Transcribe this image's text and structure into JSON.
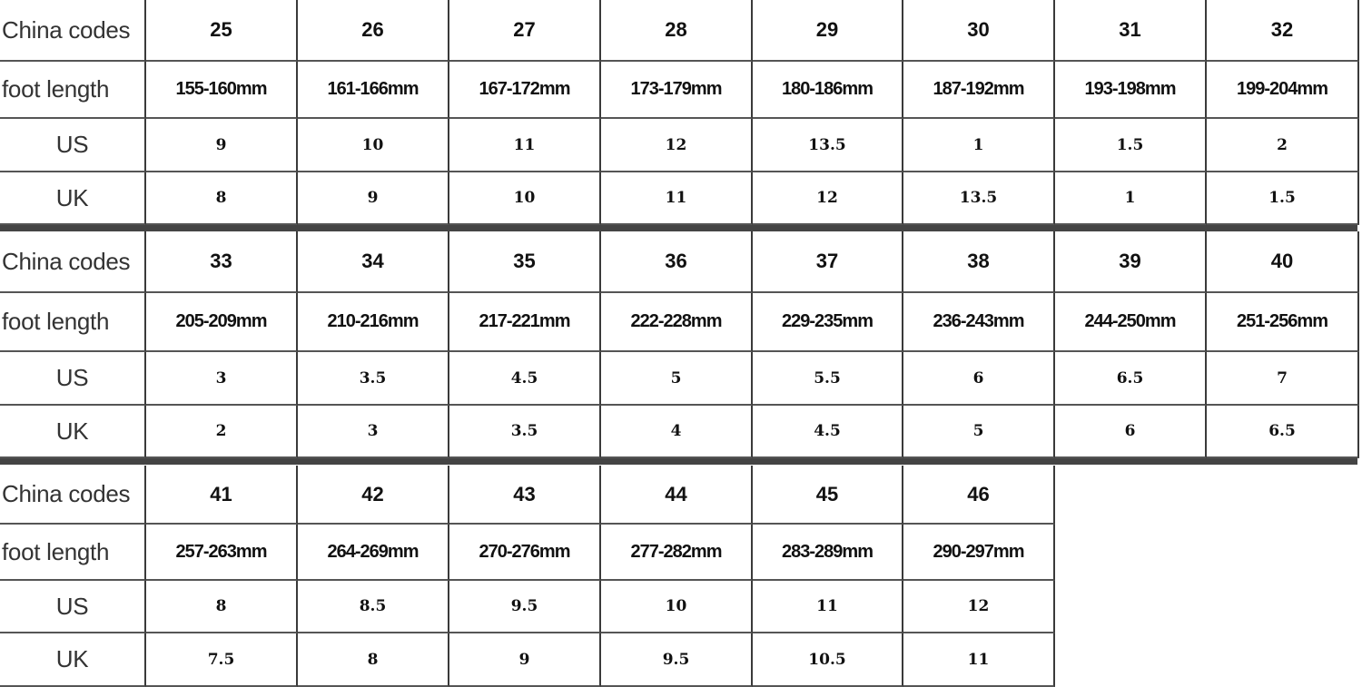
{
  "row_labels": [
    "China codes",
    "foot length",
    "US",
    "UK"
  ],
  "blocks": [
    {
      "china_codes": [
        "25",
        "26",
        "27",
        "28",
        "29",
        "30",
        "31",
        "32"
      ],
      "foot_length": [
        "155-160mm",
        "161-166mm",
        "167-172mm",
        "173-179mm",
        "180-186mm",
        "187-192mm",
        "193-198mm",
        "199-204mm"
      ],
      "us": [
        "9",
        "10",
        "11",
        "12",
        "13.5",
        "1",
        "1.5",
        "2"
      ],
      "uk": [
        "8",
        "9",
        "10",
        "11",
        "12",
        "13.5",
        "1",
        "1.5"
      ]
    },
    {
      "china_codes": [
        "33",
        "34",
        "35",
        "36",
        "37",
        "38",
        "39",
        "40"
      ],
      "foot_length": [
        "205-209mm",
        "210-216mm",
        "217-221mm",
        "222-228mm",
        "229-235mm",
        "236-243mm",
        "244-250mm",
        "251-256mm"
      ],
      "us": [
        "3",
        "3.5",
        "4.5",
        "5",
        "5.5",
        "6",
        "6.5",
        "7"
      ],
      "uk": [
        "2",
        "3",
        "3.5",
        "4",
        "4.5",
        "5",
        "6",
        "6.5"
      ]
    },
    {
      "china_codes": [
        "41",
        "42",
        "43",
        "44",
        "45",
        "46"
      ],
      "foot_length": [
        "257-263mm",
        "264-269mm",
        "270-276mm",
        "277-282mm",
        "283-289mm",
        "290-297mm"
      ],
      "us": [
        "8",
        "8.5",
        "9.5",
        "10",
        "11",
        "12"
      ],
      "uk": [
        "7.5",
        "8",
        "9",
        "9.5",
        "10.5",
        "11"
      ]
    }
  ]
}
